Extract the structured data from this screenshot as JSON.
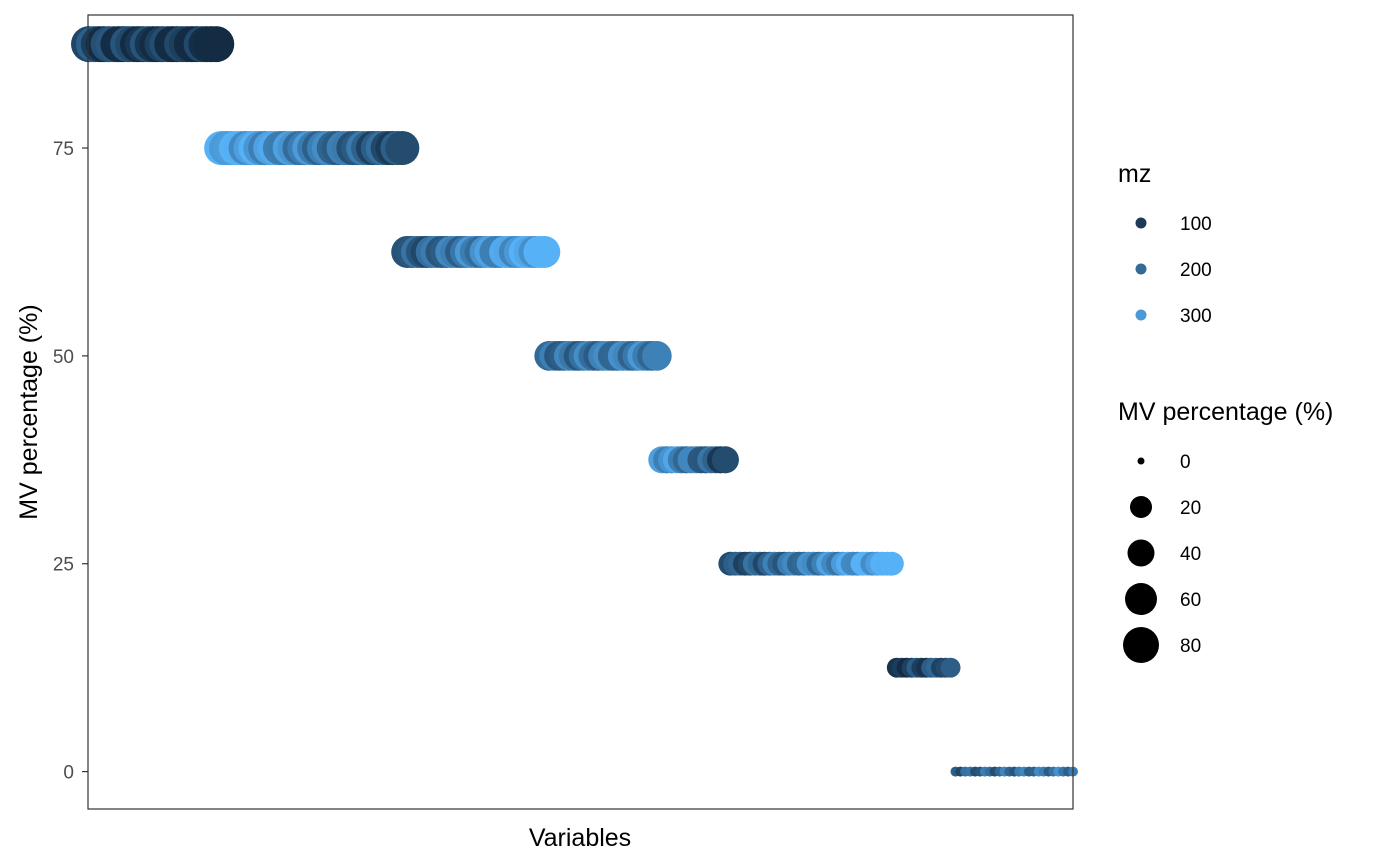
{
  "chart_data": {
    "type": "scatter",
    "title": "",
    "xlabel": "Variables",
    "ylabel": "MV percentage (%)",
    "ylim": [
      -4.5,
      91
    ],
    "y_ticks": [
      "0",
      "25",
      "50",
      "75"
    ],
    "y_tick_values": [
      0,
      25,
      50,
      75
    ],
    "x_ticks_shown": false,
    "grid": false,
    "legend_placement": "right",
    "colors": {
      "low": "#132b43",
      "high": "#56b1f7"
    },
    "groups": [
      {
        "mv_percentage": 87.5,
        "variables": 27,
        "mz_start": 140,
        "mz_end": 95
      },
      {
        "mv_percentage": 75.0,
        "variables": 38,
        "mz_start": 320,
        "mz_end": 150
      },
      {
        "mv_percentage": 62.5,
        "variables": 29,
        "mz_start": 160,
        "mz_end": 320
      },
      {
        "mv_percentage": 50.0,
        "variables": 23,
        "mz_start": 200,
        "mz_end": 240
      },
      {
        "mv_percentage": 37.5,
        "variables": 14,
        "mz_start": 290,
        "mz_end": 150
      },
      {
        "mv_percentage": 25.0,
        "variables": 34,
        "mz_start": 150,
        "mz_end": 320
      },
      {
        "mv_percentage": 12.5,
        "variables": 12,
        "mz_start": 110,
        "mz_end": 180
      },
      {
        "mv_percentage": 0.0,
        "variables": 25,
        "mz_start": 180,
        "mz_end": 230
      }
    ],
    "legends": {
      "color": {
        "title": "mz",
        "entries": [
          {
            "label": "100",
            "value": 100,
            "color": "#1d3a57"
          },
          {
            "label": "200",
            "value": 200,
            "color": "#336a98"
          },
          {
            "label": "300",
            "value": 300,
            "color": "#4b9ad8"
          }
        ]
      },
      "size": {
        "title": "MV percentage (%)",
        "entries": [
          {
            "label": "0",
            "value": 0
          },
          {
            "label": "20",
            "value": 20
          },
          {
            "label": "40",
            "value": 40
          },
          {
            "label": "60",
            "value": 60
          },
          {
            "label": "80",
            "value": 80
          }
        ]
      }
    }
  }
}
